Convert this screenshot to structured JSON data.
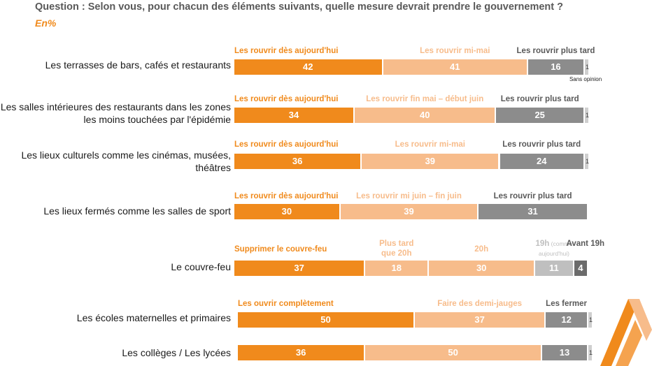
{
  "header": {
    "question": "Question : Selon vous, pour chacun des éléments suivants, quelle mesure devrait prendre le gouvernement ?",
    "unit": "En%"
  },
  "colors": {
    "orange": "#F08A1C",
    "light_orange": "#F7BC8B",
    "gray": "#8C8C8C",
    "light_gray": "#BFBFBF",
    "dark_gray": "#6B6B6B",
    "label_gray": "#595959",
    "text": "#1a1a1a"
  },
  "chart_data": {
    "type": "bar",
    "orientation": "horizontal",
    "stacked": true,
    "title": "Question : Selon vous, pour chacun des éléments suivants, quelle mesure devrait prendre le gouvernement ?",
    "unit": "En%",
    "note": "Sans opinion",
    "rows": [
      {
        "label": "Les terrasses de bars, cafés et restaurants",
        "segments": [
          {
            "category": "Les rouvrir dès aujourd'hui",
            "value": 42
          },
          {
            "category": "Les rouvrir mi-mai",
            "value": 41
          },
          {
            "category": "Les rouvrir plus tard",
            "value": 16
          },
          {
            "category": "Sans opinion",
            "value": 1
          }
        ]
      },
      {
        "label": "Les salles intérieures des restaurants dans les zones les moins touchées par l'épidémie",
        "segments": [
          {
            "category": "Les rouvrir dès aujourd'hui",
            "value": 34
          },
          {
            "category": "Les rouvrir fin mai – début juin",
            "value": 40
          },
          {
            "category": "Les rouvrir plus tard",
            "value": 25
          },
          {
            "category": "Sans opinion",
            "value": 1
          }
        ]
      },
      {
        "label": "Les lieux culturels comme les cinémas, musées, théâtres",
        "segments": [
          {
            "category": "Les rouvrir dès aujourd'hui",
            "value": 36
          },
          {
            "category": "Les rouvrir mi-mai",
            "value": 39
          },
          {
            "category": "Les rouvrir plus tard",
            "value": 24
          },
          {
            "category": "Sans opinion",
            "value": 1
          }
        ]
      },
      {
        "label": "Les lieux fermés comme les salles de sport",
        "segments": [
          {
            "category": "Les rouvrir dès aujourd'hui",
            "value": 30
          },
          {
            "category": "Les rouvrir mi juin – fin juin",
            "value": 39
          },
          {
            "category": "Les rouvrir plus tard",
            "value": 31
          }
        ]
      },
      {
        "label": "Le couvre-feu",
        "segments": [
          {
            "category": "Supprimer le couvre-feu",
            "value": 37
          },
          {
            "category": "Plus tard que 20h",
            "value": 18
          },
          {
            "category": "20h",
            "value": 30
          },
          {
            "category": "19h",
            "category_note": "(comme aujourd'hui)",
            "value": 11
          },
          {
            "category": "Avant 19h",
            "value": 4
          }
        ]
      },
      {
        "label": "Les écoles maternelles et primaires",
        "segments": [
          {
            "category": "Les ouvrir complètement",
            "value": 50
          },
          {
            "category": "Faire des demi-jauges",
            "value": 37
          },
          {
            "category": "Les fermer",
            "value": 12
          },
          {
            "category": "Sans opinion",
            "value": 1
          }
        ]
      },
      {
        "label": "Les collèges / Les lycées",
        "segments": [
          {
            "category": "Les ouvrir complètement",
            "value": 36
          },
          {
            "category": "Faire des demi-jauges",
            "value": 50
          },
          {
            "category": "Les fermer",
            "value": 13
          },
          {
            "category": "Sans opinion",
            "value": 1
          }
        ]
      }
    ]
  }
}
